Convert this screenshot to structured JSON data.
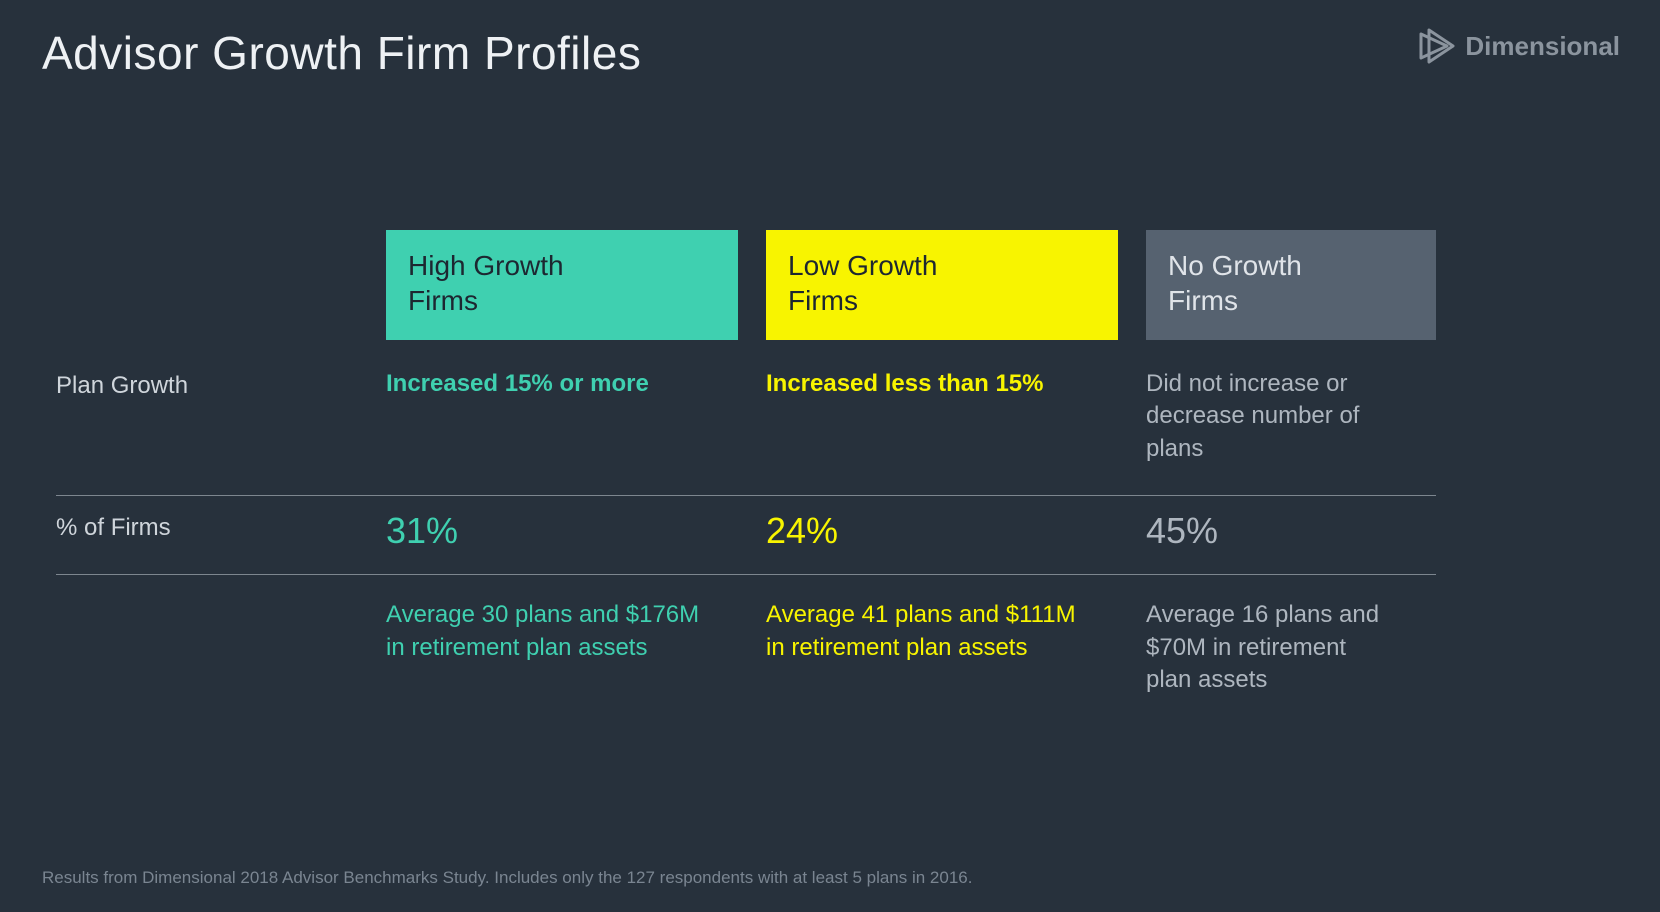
{
  "type": "infographic-table",
  "background_color": "#27313c",
  "title": "Advisor Growth Firm Profiles",
  "title_color": "#eef1f4",
  "title_fontsize": 46,
  "brand": "Dimensional",
  "brand_color": "#8b949e",
  "row_labels": {
    "plan_growth": "Plan Growth",
    "percent_firms": "% of Firms"
  },
  "columns": {
    "high": {
      "header": "High Growth\nFirms",
      "header_bg": "#3fd0b0",
      "header_text_color": "#1d2731",
      "accent_color": "#3fd0b0",
      "criteria": "Increased 15% or more",
      "percent": "31%",
      "average": "Average 30 plans and $176M in retirement plan assets"
    },
    "low": {
      "header": "Low Growth\nFirms",
      "header_bg": "#f8f400",
      "header_text_color": "#1d2731",
      "accent_color": "#f8f400",
      "criteria": "Increased less than 15%",
      "percent": "24%",
      "average": "Average 41 plans and $111M in retirement plan assets"
    },
    "none": {
      "header": "No Growth\nFirms",
      "header_bg": "#566270",
      "header_text_color": "#e0e4e9",
      "accent_color": "#aeb6bf",
      "criteria": "Did not increase or decrease number of plans",
      "percent": "45%",
      "average": "Average 16 plans and $70M in retirement plan assets"
    }
  },
  "divider_color": "#7d868f",
  "footnote": "Results from Dimensional 2018 Advisor Benchmarks Study. Includes only the 127 respondents with at least 5 plans in 2016."
}
